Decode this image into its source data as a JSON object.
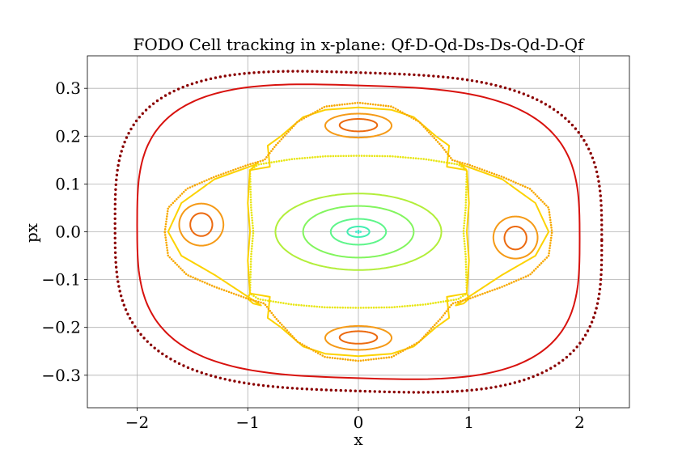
{
  "chart_data": {
    "type": "scatter",
    "title": "FODO Cell tracking in x-plane: Qf-D-Qd-Ds-Ds-Qd-D-Qf",
    "xlabel": "x",
    "ylabel": "px",
    "xlim": [
      -2.45,
      2.45
    ],
    "ylim": [
      -0.368,
      0.368
    ],
    "xticks": [
      -2,
      -1,
      0,
      1,
      2
    ],
    "xtick_labels": [
      "−2",
      "−1",
      "0",
      "1",
      "2"
    ],
    "yticks": [
      -0.3,
      -0.2,
      -0.1,
      0.0,
      0.1,
      0.2,
      0.3
    ],
    "ytick_labels": [
      "−0.3",
      "−0.2",
      "−0.1",
      "0.0",
      "0.1",
      "0.2",
      "0.3"
    ],
    "grid": true,
    "legend": false,
    "series": [
      {
        "kind": "ellipse",
        "a": 0.02,
        "b": 0.002,
        "cx": 0,
        "cy": 0,
        "color": "#3ee5c8",
        "style": "dots"
      },
      {
        "kind": "ellipse",
        "a": 0.1,
        "b": 0.011,
        "cx": 0,
        "cy": 0,
        "color": "#42eeb2",
        "style": "line"
      },
      {
        "kind": "ellipse",
        "a": 0.25,
        "b": 0.027,
        "cx": 0,
        "cy": 0,
        "color": "#5ef58a",
        "style": "line"
      },
      {
        "kind": "ellipse",
        "a": 0.5,
        "b": 0.054,
        "cx": 0,
        "cy": 0,
        "color": "#82f55e",
        "style": "line"
      },
      {
        "kind": "ellipse",
        "a": 0.75,
        "b": 0.08,
        "cx": 0,
        "cy": 0,
        "color": "#b2ee3a",
        "style": "line"
      },
      {
        "kind": "polyline",
        "color": "#e8e616",
        "style": "dots",
        "points": [
          [
            -0.98,
            0.129
          ],
          [
            -0.9,
            0.141
          ],
          [
            -0.6,
            0.152
          ],
          [
            -0.3,
            0.158
          ],
          [
            0,
            0.159
          ],
          [
            0.3,
            0.158
          ],
          [
            0.6,
            0.152
          ],
          [
            0.9,
            0.141
          ],
          [
            0.98,
            0.129
          ],
          [
            0.97,
            0.05
          ],
          [
            0.95,
            0
          ],
          [
            0.97,
            -0.05
          ],
          [
            0.98,
            -0.129
          ],
          [
            0.9,
            -0.141
          ],
          [
            0.6,
            -0.152
          ],
          [
            0.3,
            -0.158
          ],
          [
            0,
            -0.159
          ],
          [
            -0.3,
            -0.158
          ],
          [
            -0.6,
            -0.152
          ],
          [
            -0.9,
            -0.141
          ],
          [
            -0.98,
            -0.129
          ],
          [
            -0.97,
            -0.05
          ],
          [
            -0.95,
            0
          ],
          [
            -0.97,
            0.05
          ],
          [
            -0.98,
            0.129
          ]
        ]
      },
      {
        "kind": "polyline",
        "color": "#fcd200",
        "style": "line",
        "points": [
          [
            -0.98,
            0.129
          ],
          [
            -1.0,
            0.06
          ],
          [
            -0.98,
            0
          ],
          [
            -1.0,
            -0.06
          ],
          [
            -0.98,
            -0.129
          ],
          [
            -1.0,
            -0.14
          ],
          [
            -0.95,
            -0.15
          ],
          [
            -0.88,
            -0.154
          ],
          [
            -1.3,
            -0.09
          ],
          [
            -1.6,
            -0.05
          ],
          [
            -1.72,
            0
          ],
          [
            -1.6,
            0.06
          ],
          [
            -1.3,
            0.11
          ],
          [
            -0.94,
            0.14
          ],
          [
            -0.91,
            0.144
          ],
          [
            -0.98,
            0.129
          ]
        ]
      },
      {
        "kind": "polyline",
        "color": "#fcd200",
        "style": "line",
        "points": [
          [
            0.98,
            0.129
          ],
          [
            1.0,
            0.06
          ],
          [
            0.98,
            0
          ],
          [
            1.0,
            -0.06
          ],
          [
            0.98,
            -0.129
          ],
          [
            1.0,
            -0.14
          ],
          [
            0.95,
            -0.15
          ],
          [
            0.88,
            -0.154
          ],
          [
            1.3,
            -0.09
          ],
          [
            1.6,
            -0.05
          ],
          [
            1.72,
            0
          ],
          [
            1.6,
            0.06
          ],
          [
            1.3,
            0.11
          ],
          [
            0.94,
            0.14
          ],
          [
            0.91,
            0.144
          ],
          [
            0.98,
            0.129
          ]
        ]
      },
      {
        "kind": "polyline",
        "color": "#fcd200",
        "style": "line",
        "points": [
          [
            -0.98,
            0.129
          ],
          [
            -0.8,
            0.136
          ],
          [
            -0.82,
            0.18
          ],
          [
            -0.7,
            0.2
          ],
          [
            -0.5,
            0.24
          ],
          [
            -0.3,
            0.255
          ],
          [
            0,
            0.26
          ],
          [
            0.3,
            0.255
          ],
          [
            0.5,
            0.24
          ],
          [
            0.7,
            0.2
          ],
          [
            0.82,
            0.18
          ],
          [
            0.8,
            0.136
          ],
          [
            0.98,
            0.129
          ]
        ]
      },
      {
        "kind": "polyline",
        "color": "#fcd200",
        "style": "line",
        "points": [
          [
            -0.98,
            -0.129
          ],
          [
            -0.8,
            -0.136
          ],
          [
            -0.82,
            -0.18
          ],
          [
            -0.7,
            -0.2
          ],
          [
            -0.5,
            -0.24
          ],
          [
            -0.3,
            -0.255
          ],
          [
            0,
            -0.26
          ],
          [
            0.3,
            -0.255
          ],
          [
            0.5,
            -0.24
          ],
          [
            0.7,
            -0.2
          ],
          [
            0.82,
            -0.18
          ],
          [
            0.8,
            -0.136
          ],
          [
            0.98,
            -0.129
          ]
        ]
      },
      {
        "kind": "polyline",
        "color": "#f7a800",
        "style": "dots",
        "points": [
          [
            -1.75,
            0
          ],
          [
            -1.72,
            0.05
          ],
          [
            -1.55,
            0.09
          ],
          [
            -1.3,
            0.115
          ],
          [
            -1.0,
            0.14
          ],
          [
            -0.85,
            0.15
          ],
          [
            -0.75,
            0.18
          ],
          [
            -0.55,
            0.23
          ],
          [
            -0.3,
            0.262
          ],
          [
            0,
            0.27
          ],
          [
            0.3,
            0.262
          ],
          [
            0.55,
            0.23
          ],
          [
            0.75,
            0.18
          ],
          [
            0.85,
            0.15
          ],
          [
            1.0,
            0.14
          ],
          [
            1.3,
            0.115
          ],
          [
            1.55,
            0.09
          ],
          [
            1.72,
            0.05
          ],
          [
            1.75,
            0
          ],
          [
            1.72,
            -0.05
          ],
          [
            1.55,
            -0.09
          ],
          [
            1.3,
            -0.115
          ],
          [
            1.0,
            -0.14
          ],
          [
            0.85,
            -0.15
          ],
          [
            0.75,
            -0.18
          ],
          [
            0.55,
            -0.23
          ],
          [
            0.3,
            -0.262
          ],
          [
            0,
            -0.27
          ],
          [
            -0.3,
            -0.262
          ],
          [
            -0.55,
            -0.23
          ],
          [
            -0.75,
            -0.18
          ],
          [
            -0.85,
            -0.15
          ],
          [
            -1.0,
            -0.14
          ],
          [
            -1.3,
            -0.115
          ],
          [
            -1.55,
            -0.09
          ],
          [
            -1.72,
            -0.05
          ],
          [
            -1.75,
            0
          ]
        ]
      },
      {
        "kind": "ellipse",
        "a": 0.3,
        "b": 0.025,
        "cx": 0,
        "cy": 0.222,
        "color": "#f59a17",
        "style": "line"
      },
      {
        "kind": "ellipse",
        "a": 0.3,
        "b": 0.025,
        "cx": 0,
        "cy": -0.222,
        "color": "#f59a17",
        "style": "line"
      },
      {
        "kind": "ellipse",
        "a": 0.2,
        "b": 0.044,
        "cx": -1.42,
        "cy": 0.015,
        "color": "#f59a17",
        "style": "line"
      },
      {
        "kind": "ellipse",
        "a": 0.2,
        "b": 0.044,
        "cx": 1.42,
        "cy": -0.012,
        "color": "#f59a17",
        "style": "line"
      },
      {
        "kind": "ellipse",
        "a": 0.17,
        "b": 0.013,
        "cx": 0,
        "cy": 0.223,
        "color": "#ec6a10",
        "style": "line"
      },
      {
        "kind": "ellipse",
        "a": 0.17,
        "b": 0.013,
        "cx": 0,
        "cy": -0.221,
        "color": "#ec6a10",
        "style": "line"
      },
      {
        "kind": "ellipse",
        "a": 0.1,
        "b": 0.024,
        "cx": -1.42,
        "cy": 0.015,
        "color": "#ec6a10",
        "style": "line"
      },
      {
        "kind": "ellipse",
        "a": 0.1,
        "b": 0.024,
        "cx": 1.42,
        "cy": -0.013,
        "color": "#ec6a10",
        "style": "line"
      },
      {
        "kind": "superellipse",
        "a": 2.0,
        "b": 0.306,
        "n": 3.2,
        "tilt": 0.014,
        "color": "#d8120e",
        "style": "line"
      },
      {
        "kind": "superellipse",
        "a": 2.2,
        "b": 0.333,
        "n": 3.2,
        "tilt": 0.016,
        "color": "#8a0000",
        "style": "dots"
      }
    ]
  }
}
